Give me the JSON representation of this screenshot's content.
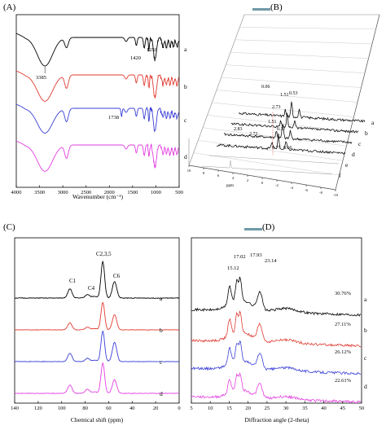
{
  "figure": {
    "panel_labels": [
      "(A)",
      "(B)",
      "(C)",
      "(D)"
    ]
  },
  "chart_data": [
    {
      "panel": "A",
      "type": "line",
      "xlabel": "Wavenumber (cm⁻¹)",
      "xlim": [
        4000,
        500
      ],
      "x_ticks": [
        "4000",
        "3500",
        "3000",
        "2500",
        "2000",
        "1500",
        "1000",
        "500"
      ],
      "grid": false,
      "series": [
        {
          "name": "a",
          "color": "#000000",
          "band_min": [
            [
              3385,
              0.92
            ],
            [
              2920,
              0.3
            ],
            [
              1640,
              0.15
            ],
            [
              1420,
              0.35
            ],
            [
              1250,
              0.4
            ],
            [
              1020,
              0.85
            ]
          ]
        },
        {
          "name": "b",
          "color": "#e03c31",
          "band_min": [
            [
              3385,
              0.85
            ],
            [
              2920,
              0.45
            ],
            [
              1640,
              0.1
            ],
            [
              1420,
              0.3
            ],
            [
              1250,
              0.4
            ],
            [
              1020,
              0.85
            ]
          ]
        },
        {
          "name": "c",
          "color": "#3a3fd6",
          "band_min": [
            [
              3385,
              0.8
            ],
            [
              2920,
              0.45
            ],
            [
              1738,
              0.2
            ],
            [
              1420,
              0.3
            ],
            [
              1250,
              0.35
            ],
            [
              1020,
              0.85
            ]
          ]
        },
        {
          "name": "d",
          "color": "#e23ee0",
          "band_min": [
            [
              3385,
              0.85
            ],
            [
              2920,
              0.45
            ],
            [
              1420,
              0.35
            ],
            [
              1020,
              0.85
            ]
          ]
        }
      ],
      "annotations": [
        "3385",
        "1420",
        "1250",
        "1738"
      ]
    },
    {
      "panel": "B",
      "type": "line",
      "xlabel": "ppm",
      "xlim": [
        10,
        -10
      ],
      "x_ticks": [
        "10",
        "8",
        "6",
        "4",
        "2",
        "0",
        "-2",
        "-4",
        "-6",
        "-8",
        "-10"
      ],
      "series": [
        {
          "name": "a",
          "peaks_ppm": [
            0.06,
            1.51,
            0.53
          ]
        },
        {
          "name": "b",
          "peaks_ppm": [
            2.73,
            0.37
          ]
        },
        {
          "name": "c",
          "peaks_ppm": [
            2.83,
            1.51
          ]
        },
        {
          "name": "d",
          "peaks_ppm": [
            2.73,
            0.77,
            0.66
          ]
        },
        {
          "name": "e",
          "peaks_ppm": []
        },
        {
          "name": "f",
          "peaks_ppm": []
        }
      ],
      "annotations": [
        "0.06",
        "2.73",
        "1.51",
        "0.53",
        "0.37",
        "2.83",
        "2.73",
        "1.51",
        "0.77",
        "0.66"
      ]
    },
    {
      "panel": "C",
      "type": "line",
      "xlabel": "Chemical shift (ppm)",
      "xlim": [
        140,
        0
      ],
      "x_ticks": [
        "140",
        "120",
        "100",
        "80",
        "60",
        "40",
        "20",
        "0"
      ],
      "peaks": [
        {
          "label": "C1",
          "ppm": 93
        },
        {
          "label": "C4",
          "ppm": 78
        },
        {
          "label": "C2,3,5",
          "ppm": 65
        },
        {
          "label": "C6",
          "ppm": 55
        }
      ],
      "series": [
        {
          "name": "a",
          "color": "#000000",
          "peak_heights": [
            0.25,
            0.1,
            1.0,
            0.45
          ]
        },
        {
          "name": "b",
          "color": "#e03c31",
          "peak_heights": [
            0.25,
            0.1,
            1.0,
            0.55
          ]
        },
        {
          "name": "c",
          "color": "#3a3fd6",
          "peak_heights": [
            0.3,
            0.12,
            1.1,
            0.7
          ]
        },
        {
          "name": "d",
          "color": "#e23ee0",
          "peak_heights": [
            0.3,
            0.15,
            1.1,
            0.5
          ]
        }
      ]
    },
    {
      "panel": "D",
      "type": "line",
      "xlabel": "Diffraction angle (2-theta)",
      "xlim": [
        5,
        50
      ],
      "x_ticks": [
        "5",
        "10",
        "15",
        "20",
        "25",
        "30",
        "35",
        "40",
        "45",
        "50"
      ],
      "peaks_2theta": [
        "15.12",
        "17.02",
        "17.93",
        "23.14"
      ],
      "series": [
        {
          "name": "a",
          "color": "#000000",
          "crystallinity": "30.76%"
        },
        {
          "name": "b",
          "color": "#e03c31",
          "crystallinity": "27.11%"
        },
        {
          "name": "c",
          "color": "#3a3fd6",
          "crystallinity": "26.12%"
        },
        {
          "name": "d",
          "color": "#e23ee0",
          "crystallinity": "22.61%"
        }
      ]
    }
  ]
}
